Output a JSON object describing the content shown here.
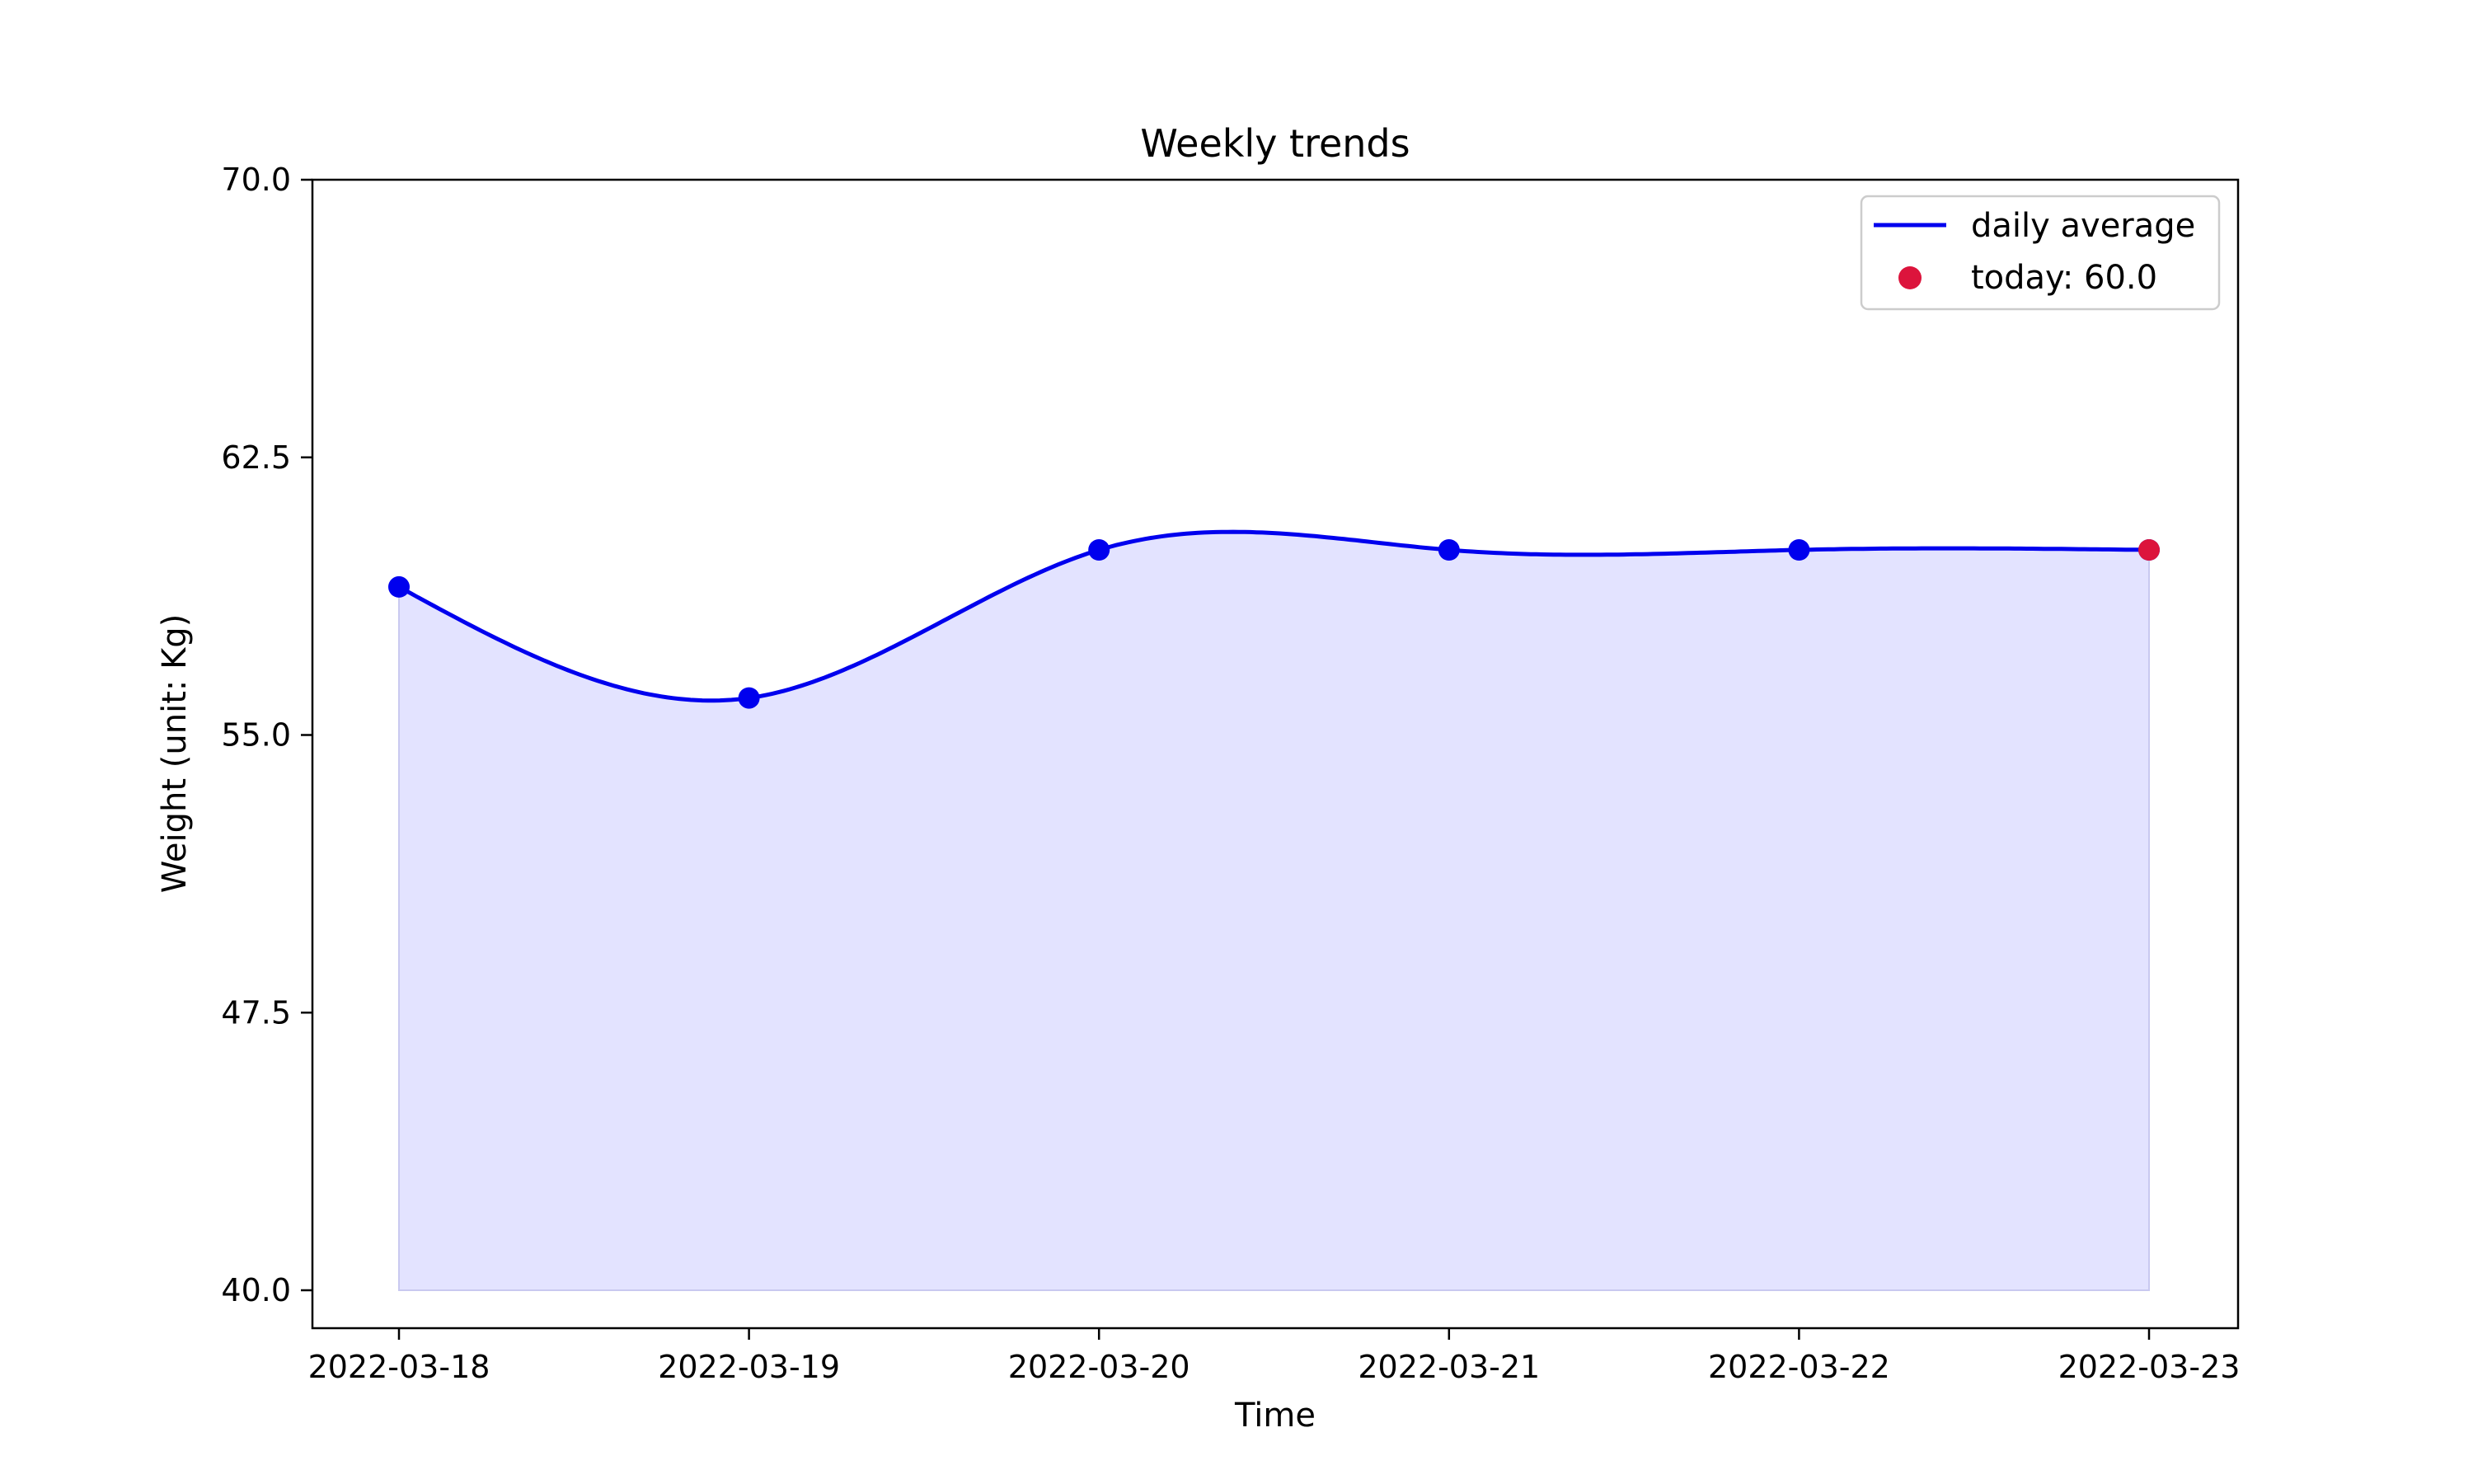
{
  "chart_data": {
    "type": "line",
    "title": "Weekly trends",
    "xlabel": "Time",
    "ylabel": "Weight (unit: Kg)",
    "x": [
      "2022-03-18",
      "2022-03-19",
      "2022-03-20",
      "2022-03-21",
      "2022-03-22",
      "2022-03-23"
    ],
    "series": [
      {
        "name": "daily average",
        "values": [
          59.0,
          56.0,
          60.0,
          60.0,
          60.0,
          60.0
        ],
        "color": "#0000ee",
        "fill": "#e3e3ff",
        "smooth": true,
        "area_baseline": 40.0
      }
    ],
    "highlight": {
      "label": "today: 60.0",
      "x": "2022-03-23",
      "value": 60.0,
      "color": "#dc143c"
    },
    "yticks": [
      "40.0",
      "47.5",
      "55.0",
      "62.5",
      "70.0"
    ],
    "ylim": [
      40.0,
      70.0
    ],
    "grid": false,
    "legend": "top-right"
  }
}
